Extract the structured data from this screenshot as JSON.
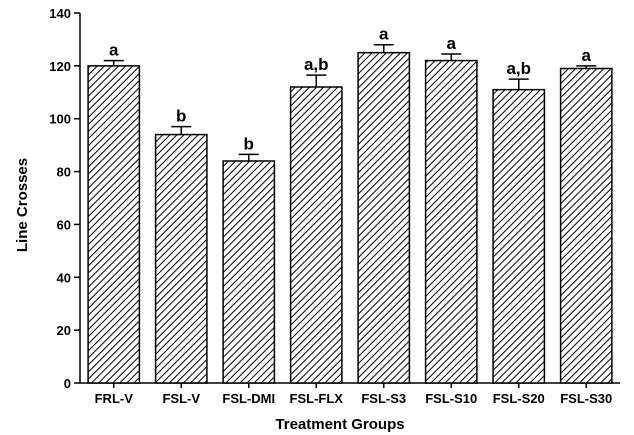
{
  "chart_data": {
    "type": "bar",
    "title": "",
    "xlabel": "Treatment Groups",
    "ylabel": "Line Crosses",
    "ylim": [
      0,
      140
    ],
    "yticks": [
      0,
      20,
      40,
      60,
      80,
      100,
      120,
      140
    ],
    "categories": [
      "FRL-V",
      "FSL-V",
      "FSL-DMI",
      "FSL-FLX",
      "FSL-S3",
      "FSL-S10",
      "FSL-S20",
      "FSL-S30"
    ],
    "values": [
      120,
      94,
      84,
      112,
      125,
      122,
      111,
      119
    ],
    "errors": [
      2,
      3,
      2.5,
      4.5,
      3,
      2.5,
      4,
      1
    ],
    "significance": [
      "a",
      "b",
      "b",
      "a,b",
      "a",
      "a",
      "a,b",
      "a"
    ],
    "bar_fill": "hatched",
    "grid": false,
    "legend": "none"
  }
}
